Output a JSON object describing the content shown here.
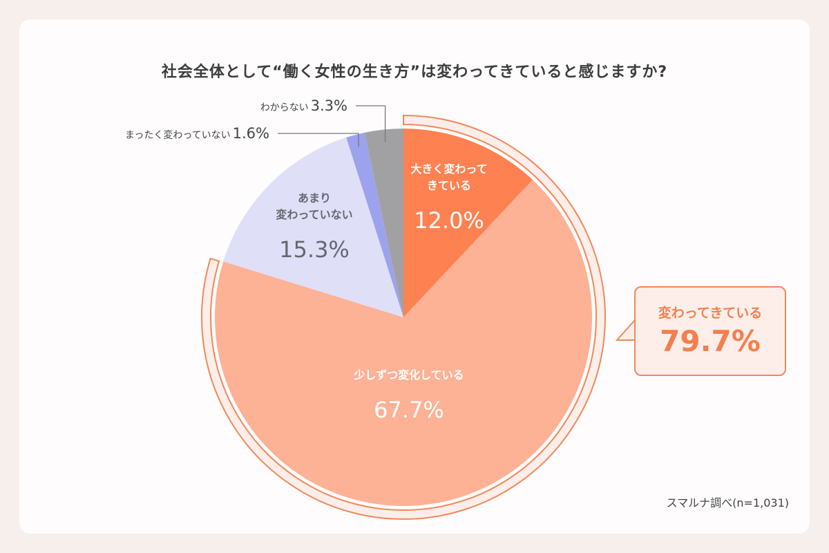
{
  "chart_data": {
    "type": "pie",
    "title": "社会全体として“働く女性の生き方”は変わってきていると感じますか?",
    "start": "top",
    "direction": "clockwise",
    "slices": [
      {
        "label_lines": [
          "大きく変わって",
          "きている"
        ],
        "value": 12.0,
        "value_label": "12.0%",
        "color": "#fe8152",
        "text_color": "#ffffff"
      },
      {
        "label_lines": [
          "少しずつ変化している"
        ],
        "value": 67.7,
        "value_label": "67.7%",
        "color": "#fdb195",
        "text_color": "#ffffff"
      },
      {
        "label_lines": [
          "あまり",
          "変わっていない"
        ],
        "value": 15.3,
        "value_label": "15.3%",
        "color": "#dfdff8",
        "text_color": "#666670"
      },
      {
        "label_lines": [
          "まったく変わっていない"
        ],
        "value": 1.6,
        "value_label": "1.6%",
        "color": "#9da2ee",
        "text_color": "#444444"
      },
      {
        "label_lines": [
          "わからない"
        ],
        "value": 3.3,
        "value_label": "3.3%",
        "color": "#a1a1a4",
        "text_color": "#444444"
      }
    ],
    "group_annotation": {
      "label": "変わってきている",
      "value": 79.7,
      "value_label": "79.7%",
      "color": "#f2875a"
    }
  },
  "source": "スマルナ調べ(n=1,031)"
}
